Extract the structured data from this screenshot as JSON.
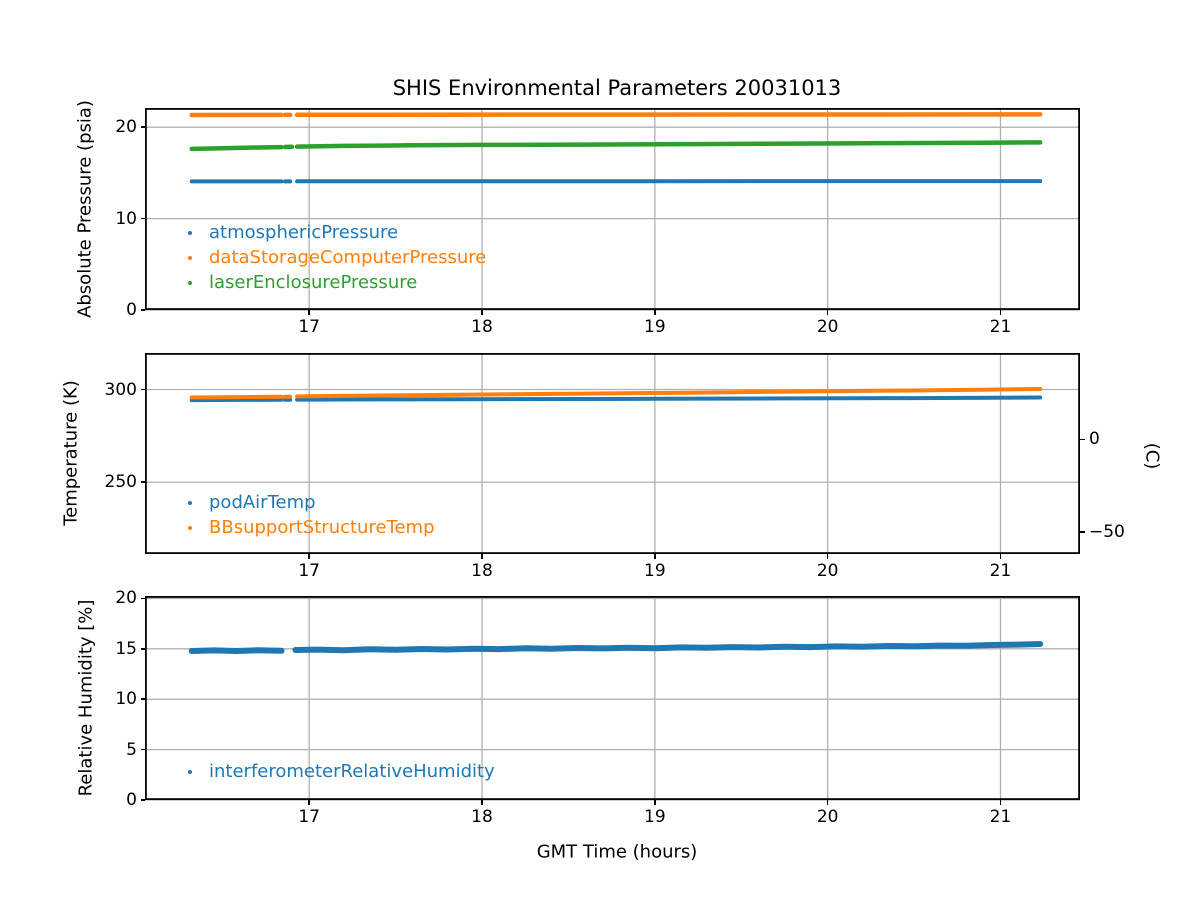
{
  "title": "SHIS Environmental Parameters 20031013",
  "colors": {
    "blue": "#1f77b4",
    "orange": "#ff7f0e",
    "green": "#2ca02c",
    "grid": "#b0b0b0",
    "spine": "#000000",
    "text": "#000000"
  },
  "chart_data": [
    {
      "type": "scatter",
      "ylabel": "Absolute Pressure (psia)",
      "xlim": [
        16.05,
        21.46
      ],
      "ylim": [
        0,
        22.1
      ],
      "grid": true,
      "xticks": {
        "values": [
          17,
          18,
          19,
          20,
          21
        ],
        "labels": [
          "17",
          "18",
          "19",
          "20",
          "21"
        ]
      },
      "yticks": {
        "values": [
          0,
          10,
          20
        ],
        "labels": [
          "0",
          "10",
          "20"
        ]
      },
      "legend": {
        "left": 0,
        "top": 112,
        "entries": [
          {
            "label": "atmosphericPressure",
            "color": "#1f77b4"
          },
          {
            "label": "dataStorageComputerPressure",
            "color": "#ff7f0e"
          },
          {
            "label": "laserEnclosurePressure",
            "color": "#2ca02c"
          }
        ]
      },
      "series": [
        {
          "name": "atmosphericPressure",
          "color": "#1f77b4",
          "lw": 4,
          "segments": [
            [
              [
                16.32,
                14.07
              ],
              [
                16.84,
                14.07
              ]
            ],
            [
              [
                16.86,
                14.07
              ],
              [
                16.89,
                14.07
              ]
            ],
            [
              [
                16.93,
                14.08
              ],
              [
                21.23,
                14.1
              ]
            ]
          ]
        },
        {
          "name": "dataStorageComputerPressure",
          "color": "#ff7f0e",
          "lw": 4.5,
          "segments": [
            [
              [
                16.32,
                21.33
              ],
              [
                16.84,
                21.35
              ]
            ],
            [
              [
                16.86,
                21.35
              ],
              [
                16.89,
                21.35
              ]
            ],
            [
              [
                16.93,
                21.36
              ],
              [
                21.23,
                21.4
              ]
            ]
          ]
        },
        {
          "name": "laserEnclosurePressure",
          "color": "#2ca02c",
          "lw": 4.5,
          "segments": [
            [
              [
                16.32,
                17.62
              ],
              [
                16.5,
                17.7
              ],
              [
                16.7,
                17.78
              ],
              [
                16.84,
                17.82
              ]
            ],
            [
              [
                16.86,
                17.83
              ],
              [
                16.9,
                17.85
              ]
            ],
            [
              [
                16.93,
                17.88
              ],
              [
                17.2,
                17.95
              ],
              [
                17.6,
                18.02
              ],
              [
                18.0,
                18.06
              ],
              [
                18.6,
                18.1
              ],
              [
                19.2,
                18.15
              ],
              [
                19.8,
                18.2
              ],
              [
                20.4,
                18.26
              ],
              [
                20.9,
                18.3
              ],
              [
                21.23,
                18.34
              ]
            ]
          ]
        }
      ]
    },
    {
      "type": "scatter",
      "ylabel": "Temperature (K)",
      "y2label": "(C)",
      "xlim": [
        16.05,
        21.46
      ],
      "ylim": [
        211.3,
        319.7
      ],
      "grid": true,
      "xticks": {
        "values": [
          17,
          18,
          19,
          20,
          21
        ],
        "labels": [
          "17",
          "18",
          "19",
          "20",
          "21"
        ]
      },
      "yticks": {
        "values": [
          250,
          300
        ],
        "labels": [
          "250",
          "300"
        ]
      },
      "y2ticks": {
        "values": [
          273.15,
          223.15
        ],
        "labels": [
          "0",
          "−50"
        ]
      },
      "legend": {
        "left": 0,
        "top": 137,
        "entries": [
          {
            "label": "podAirTemp",
            "color": "#1f77b4"
          },
          {
            "label": "BBsupportStructureTemp",
            "color": "#ff7f0e"
          }
        ]
      },
      "series": [
        {
          "name": "podAirTemp",
          "color": "#1f77b4",
          "lw": 4,
          "segments": [
            [
              [
                16.32,
                294.3
              ],
              [
                16.6,
                294.4
              ],
              [
                16.84,
                294.5
              ]
            ],
            [
              [
                16.86,
                294.5
              ],
              [
                16.89,
                294.52
              ]
            ],
            [
              [
                16.93,
                294.55
              ],
              [
                17.5,
                294.7
              ],
              [
                18.2,
                294.85
              ],
              [
                19.0,
                295.0
              ],
              [
                19.8,
                295.2
              ],
              [
                20.5,
                295.4
              ],
              [
                21.23,
                295.7
              ]
            ]
          ]
        },
        {
          "name": "BBsupportStructureTemp",
          "color": "#ff7f0e",
          "lw": 4,
          "segments": [
            [
              [
                16.32,
                295.7
              ],
              [
                16.6,
                295.9
              ],
              [
                16.84,
                296.1
              ]
            ],
            [
              [
                16.86,
                296.1
              ],
              [
                16.89,
                296.15
              ]
            ],
            [
              [
                16.93,
                296.3
              ],
              [
                17.4,
                296.8
              ],
              [
                18.0,
                297.3
              ],
              [
                18.6,
                297.8
              ],
              [
                19.2,
                298.3
              ],
              [
                19.8,
                298.9
              ],
              [
                20.4,
                299.4
              ],
              [
                20.9,
                299.9
              ],
              [
                21.23,
                300.3
              ]
            ]
          ]
        }
      ]
    },
    {
      "type": "scatter",
      "ylabel": "Relative Humidity [%]",
      "xlabel": "GMT Time (hours)",
      "xlim": [
        16.05,
        21.46
      ],
      "ylim": [
        0,
        20.24
      ],
      "grid": true,
      "xticks": {
        "values": [
          17,
          18,
          19,
          20,
          21
        ],
        "labels": [
          "17",
          "18",
          "19",
          "20",
          "21"
        ]
      },
      "yticks": {
        "values": [
          0,
          5,
          10,
          15,
          20
        ],
        "labels": [
          "0",
          "5",
          "10",
          "15",
          "20"
        ]
      },
      "legend": {
        "left": 0,
        "top": 163,
        "entries": [
          {
            "label": "interferometerRelativeHumidity",
            "color": "#1f77b4"
          }
        ]
      },
      "series": [
        {
          "name": "interferometerRelativeHumidity",
          "color": "#1f77b4",
          "lw": 6,
          "segments": [
            [
              [
                16.32,
                14.78
              ],
              [
                16.45,
                14.84
              ],
              [
                16.58,
                14.78
              ],
              [
                16.7,
                14.85
              ],
              [
                16.84,
                14.8
              ]
            ],
            [
              [
                16.92,
                14.88
              ],
              [
                17.05,
                14.92
              ],
              [
                17.2,
                14.86
              ],
              [
                17.35,
                14.95
              ],
              [
                17.5,
                14.9
              ],
              [
                17.65,
                14.98
              ],
              [
                17.8,
                14.93
              ],
              [
                17.95,
                15.0
              ],
              [
                18.1,
                14.97
              ],
              [
                18.25,
                15.05
              ],
              [
                18.4,
                15.0
              ],
              [
                18.55,
                15.08
              ],
              [
                18.7,
                15.04
              ],
              [
                18.85,
                15.1
              ],
              [
                19.0,
                15.06
              ],
              [
                19.15,
                15.14
              ],
              [
                19.3,
                15.1
              ],
              [
                19.45,
                15.17
              ],
              [
                19.6,
                15.13
              ],
              [
                19.75,
                15.2
              ],
              [
                19.9,
                15.17
              ],
              [
                20.05,
                15.24
              ],
              [
                20.2,
                15.2
              ],
              [
                20.35,
                15.28
              ],
              [
                20.5,
                15.25
              ],
              [
                20.65,
                15.32
              ],
              [
                20.8,
                15.3
              ],
              [
                20.95,
                15.38
              ],
              [
                21.1,
                15.42
              ],
              [
                21.23,
                15.48
              ]
            ]
          ]
        }
      ]
    }
  ]
}
